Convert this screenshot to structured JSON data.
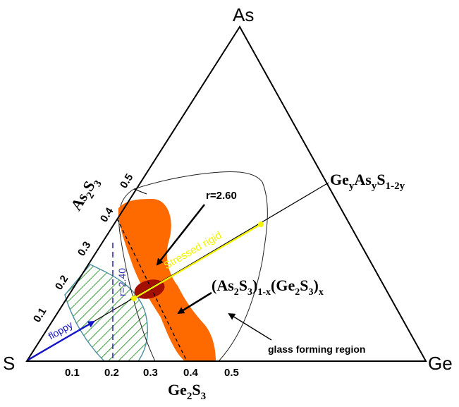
{
  "vertices": {
    "top": "As",
    "left": "S",
    "right": "Ge"
  },
  "edge_labels": {
    "as2s3": {
      "main1": "As",
      "sub1": "2",
      "main2": "S",
      "sub2": "3"
    },
    "ge2s3": {
      "main1": "Ge",
      "sub1": "2",
      "main2": "S",
      "sub2": "3"
    },
    "geyasys": {
      "m1": "Ge",
      "s1": "y",
      "m2": "As",
      "s2": "y",
      "m3": "S",
      "s3": "1-2y"
    }
  },
  "left_edge_ticks": [
    "0.1",
    "0.2",
    "0.3",
    "0.4",
    "0.5"
  ],
  "bottom_edge_ticks": [
    "0.1",
    "0.2",
    "0.3",
    "0.4",
    "0.5"
  ],
  "formula": {
    "p1": "(As",
    "s1": "2",
    "p2": "S",
    "s2": "3",
    "p3": ")",
    "s3": "1-x",
    "p4": "(Ge",
    "s4": "2",
    "p5": "S",
    "s5": "3",
    "p6": ")",
    "s6": "x"
  },
  "annotations": {
    "r260": "r=2.60",
    "r240": "r=2.40",
    "stressed_rigid": "Stressed rigid",
    "floppy": "floppy",
    "glass_region": "glass forming region"
  },
  "colors": {
    "orange": "#ff6a00",
    "dark_red": "#a31000",
    "yellow": "#f4f400",
    "blue": "#1414c8",
    "green_hatch": "#3a9a3a",
    "hatch_border": "#4a8fa0",
    "dashed_blue": "#3030b0"
  }
}
